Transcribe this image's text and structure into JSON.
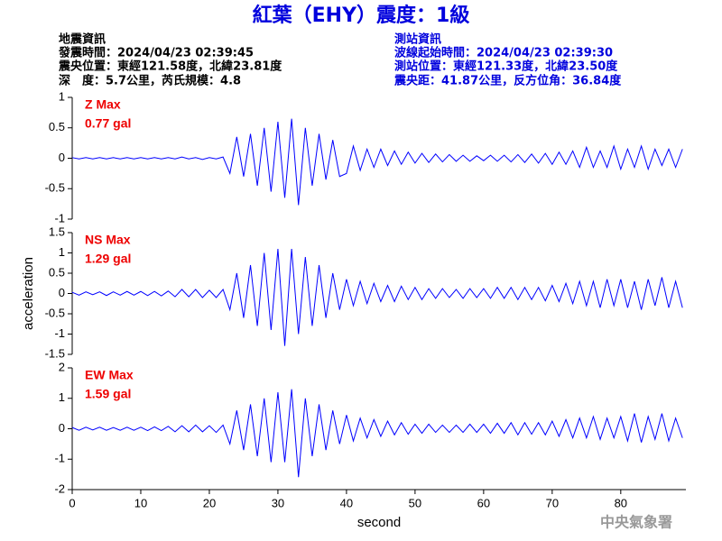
{
  "header": {
    "title": "紅葉（EHY）震度：1級",
    "left": [
      "地震資訊",
      "發震時間：2024/04/23 02:39:45",
      "震央位置：東經121.58度，北緯23.81度",
      "深　度：5.7公里，芮氏規模：4.8"
    ],
    "right": [
      "測站資訊",
      "波線起始時間：2024/04/23 02:39:30",
      "測站位置：東經121.33度，北緯23.50度",
      "震央距：41.87公里，反方位角：36.84度"
    ]
  },
  "footer": {
    "watermark": "中央氣象署"
  },
  "chart_data": [
    {
      "type": "line",
      "annotations": [
        "Z Max",
        "0.77 gal"
      ],
      "xlim": [
        0,
        89.5
      ],
      "ylim": [
        -1,
        1
      ],
      "yticks": [
        1,
        0.5,
        0,
        -0.5,
        -1
      ],
      "x": [
        0,
        1,
        2,
        3,
        4,
        5,
        6,
        7,
        8,
        9,
        10,
        11,
        12,
        13,
        14,
        15,
        16,
        17,
        18,
        19,
        20,
        21,
        22,
        23,
        24,
        25,
        26,
        27,
        28,
        29,
        30,
        31,
        32,
        33,
        34,
        35,
        36,
        37,
        38,
        39,
        40,
        41,
        42,
        43,
        44,
        45,
        46,
        47,
        48,
        49,
        50,
        51,
        52,
        53,
        54,
        55,
        56,
        57,
        58,
        59,
        60,
        61,
        62,
        63,
        64,
        65,
        66,
        67,
        68,
        69,
        70,
        71,
        72,
        73,
        74,
        75,
        76,
        77,
        78,
        79,
        80,
        81,
        82,
        83,
        84,
        85,
        86,
        87,
        88,
        89
      ],
      "series": [
        {
          "name": "Z",
          "color": "#0000ff",
          "values": [
            0.01,
            -0.01,
            0.01,
            -0.01,
            0.01,
            -0.01,
            0.01,
            -0.01,
            0.01,
            -0.01,
            0.01,
            -0.01,
            0.01,
            -0.01,
            0.01,
            -0.01,
            0.02,
            -0.01,
            0.01,
            -0.02,
            0.01,
            -0.01,
            0.02,
            -0.25,
            0.35,
            -0.3,
            0.4,
            -0.45,
            0.5,
            -0.55,
            0.6,
            -0.65,
            0.65,
            -0.77,
            0.5,
            -0.45,
            0.4,
            -0.35,
            0.3,
            -0.3,
            -0.25,
            0.2,
            -0.2,
            0.15,
            -0.15,
            0.15,
            -0.12,
            0.12,
            -0.1,
            0.1,
            -0.08,
            0.08,
            -0.07,
            0.07,
            -0.06,
            0.06,
            -0.05,
            0.05,
            -0.05,
            0.04,
            -0.04,
            0.05,
            -0.05,
            0.05,
            -0.06,
            0.06,
            -0.07,
            0.07,
            -0.08,
            0.08,
            -0.1,
            0.1,
            -0.1,
            0.12,
            -0.15,
            0.18,
            -0.15,
            0.12,
            -0.15,
            0.2,
            -0.18,
            0.15,
            -0.15,
            0.2,
            -0.18,
            0.15,
            -0.12,
            0.15,
            -0.15,
            0.15
          ]
        }
      ]
    },
    {
      "type": "line",
      "annotations": [
        "NS Max",
        "1.29 gal"
      ],
      "y_label": "acceleration",
      "xlim": [
        0,
        89.5
      ],
      "ylim": [
        -1.5,
        1.5
      ],
      "yticks": [
        1.5,
        1,
        0.5,
        0,
        -0.5,
        -1,
        -1.5
      ],
      "x": [
        0,
        1,
        2,
        3,
        4,
        5,
        6,
        7,
        8,
        9,
        10,
        11,
        12,
        13,
        14,
        15,
        16,
        17,
        18,
        19,
        20,
        21,
        22,
        23,
        24,
        25,
        26,
        27,
        28,
        29,
        30,
        31,
        32,
        33,
        34,
        35,
        36,
        37,
        38,
        39,
        40,
        41,
        42,
        43,
        44,
        45,
        46,
        47,
        48,
        49,
        50,
        51,
        52,
        53,
        54,
        55,
        56,
        57,
        58,
        59,
        60,
        61,
        62,
        63,
        64,
        65,
        66,
        67,
        68,
        69,
        70,
        71,
        72,
        73,
        74,
        75,
        76,
        77,
        78,
        79,
        80,
        81,
        82,
        83,
        84,
        85,
        86,
        87,
        88,
        89
      ],
      "series": [
        {
          "name": "NS",
          "color": "#0000ff",
          "values": [
            0.03,
            -0.04,
            0.04,
            -0.03,
            0.04,
            -0.05,
            0.04,
            -0.04,
            0.05,
            -0.04,
            0.05,
            -0.05,
            0.05,
            -0.06,
            0.06,
            -0.08,
            0.1,
            -0.08,
            0.1,
            -0.1,
            0.08,
            -0.1,
            0.1,
            -0.4,
            0.5,
            -0.6,
            0.7,
            -0.8,
            1.0,
            -0.9,
            1.1,
            -1.29,
            1.1,
            -1.0,
            0.9,
            -0.8,
            0.7,
            -0.6,
            0.5,
            -0.4,
            0.35,
            -0.3,
            0.3,
            -0.25,
            0.25,
            -0.2,
            0.2,
            -0.2,
            0.18,
            -0.15,
            0.15,
            -0.15,
            0.12,
            -0.12,
            0.12,
            -0.1,
            0.1,
            -0.12,
            0.12,
            -0.1,
            0.12,
            -0.12,
            0.15,
            -0.12,
            0.15,
            -0.15,
            0.15,
            -0.15,
            0.15,
            -0.18,
            0.2,
            -0.2,
            0.25,
            -0.25,
            0.3,
            -0.3,
            0.3,
            -0.35,
            0.35,
            -0.3,
            0.35,
            -0.35,
            0.3,
            -0.4,
            0.35,
            -0.3,
            0.4,
            -0.35,
            0.3,
            -0.35
          ]
        }
      ]
    },
    {
      "type": "line",
      "annotations": [
        "EW Max",
        "1.59 gal"
      ],
      "x_label": "second",
      "xlim": [
        0,
        89.5
      ],
      "xticks": [
        0,
        10,
        20,
        30,
        40,
        50,
        60,
        70,
        80
      ],
      "ylim": [
        -2,
        2
      ],
      "yticks": [
        2,
        1,
        0,
        -1,
        -2
      ],
      "x": [
        0,
        1,
        2,
        3,
        4,
        5,
        6,
        7,
        8,
        9,
        10,
        11,
        12,
        13,
        14,
        15,
        16,
        17,
        18,
        19,
        20,
        21,
        22,
        23,
        24,
        25,
        26,
        27,
        28,
        29,
        30,
        31,
        32,
        33,
        34,
        35,
        36,
        37,
        38,
        39,
        40,
        41,
        42,
        43,
        44,
        45,
        46,
        47,
        48,
        49,
        50,
        51,
        52,
        53,
        54,
        55,
        56,
        57,
        58,
        59,
        60,
        61,
        62,
        63,
        64,
        65,
        66,
        67,
        68,
        69,
        70,
        71,
        72,
        73,
        74,
        75,
        76,
        77,
        78,
        79,
        80,
        81,
        82,
        83,
        84,
        85,
        86,
        87,
        88,
        89
      ],
      "series": [
        {
          "name": "EW",
          "color": "#0000ff",
          "values": [
            0.04,
            -0.05,
            0.05,
            -0.04,
            0.05,
            -0.05,
            0.04,
            -0.05,
            0.05,
            -0.05,
            0.05,
            -0.06,
            0.06,
            -0.06,
            0.08,
            -0.1,
            0.1,
            -0.1,
            0.12,
            -0.1,
            0.1,
            -0.12,
            0.12,
            -0.5,
            0.6,
            -0.7,
            0.8,
            -0.9,
            1.0,
            -1.1,
            1.2,
            -1.1,
            1.3,
            -1.59,
            1.0,
            -0.9,
            0.8,
            -0.7,
            0.6,
            -0.5,
            0.45,
            -0.4,
            0.35,
            -0.3,
            0.3,
            -0.25,
            0.25,
            -0.2,
            0.2,
            -0.18,
            0.15,
            -0.15,
            0.15,
            -0.12,
            0.12,
            -0.12,
            0.12,
            -0.12,
            0.15,
            -0.12,
            0.15,
            -0.15,
            0.18,
            -0.15,
            0.2,
            -0.2,
            0.2,
            -0.18,
            0.2,
            -0.2,
            0.25,
            -0.25,
            0.3,
            -0.3,
            0.35,
            -0.3,
            0.4,
            -0.35,
            0.35,
            -0.3,
            0.4,
            -0.4,
            0.5,
            -0.45,
            0.4,
            -0.35,
            0.5,
            -0.4,
            0.35,
            -0.3
          ]
        }
      ]
    }
  ]
}
